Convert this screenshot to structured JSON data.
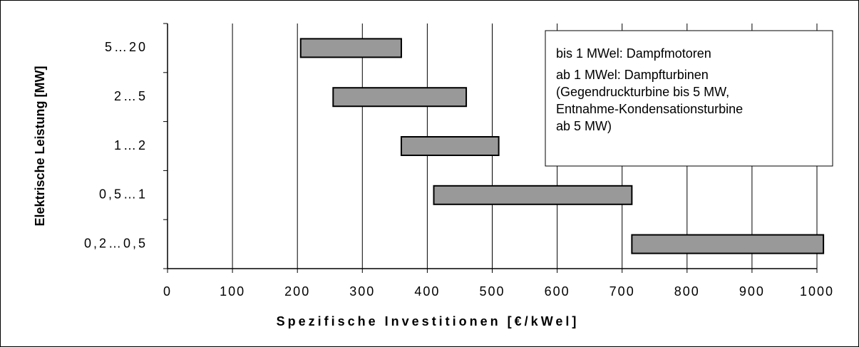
{
  "chart_data": {
    "type": "range-bar",
    "categories": [
      "5…20",
      "2…5",
      "1…2",
      "0,5…1",
      "0,2…0,5"
    ],
    "low": [
      205,
      255,
      360,
      410,
      715
    ],
    "high": [
      360,
      460,
      510,
      715,
      1010
    ],
    "color": "#999999",
    "xlabel": "Spezifische Investitionen [€/kWel]",
    "ylabel": "Elektrische Leistung [MW]",
    "xlim": [
      0,
      1000
    ],
    "xticks": [
      0,
      100,
      200,
      300,
      400,
      500,
      600,
      700,
      800,
      900,
      1000
    ],
    "grid": true,
    "annotation": [
      "bis 1 MWel: Dampfmotoren",
      "ab 1 MWel: Dampfturbinen",
      "(Gegendruckturbine bis 5 MW,",
      "Entnahme-Kondensationsturbine",
      "ab 5 MW)"
    ]
  }
}
